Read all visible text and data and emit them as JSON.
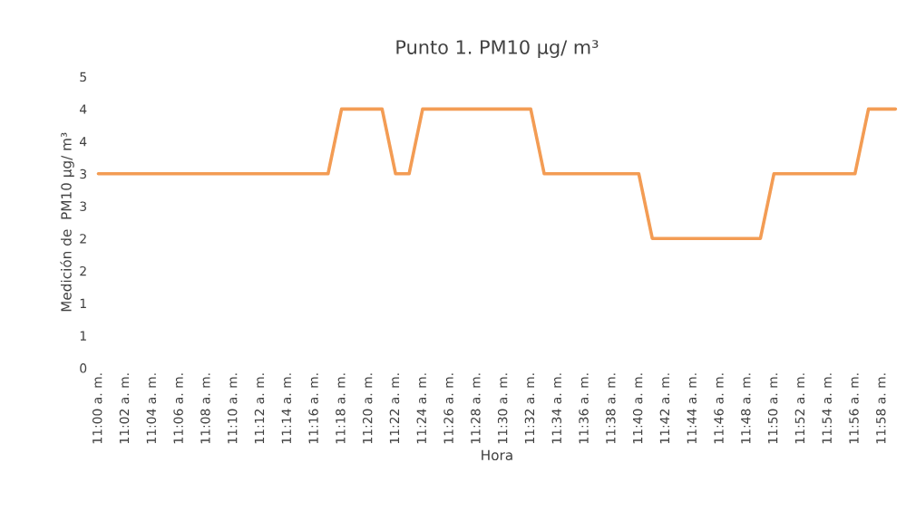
{
  "chart_data": {
    "type": "line",
    "title": "Punto 1. PM10 µg/ m³",
    "xlabel": "Hora",
    "ylabel": "Medición de  PM10 µg/ m³",
    "categories": [
      "11:00 a. m.",
      null,
      "11:02 a. m.",
      null,
      "11:04 a. m.",
      null,
      "11:06 a. m.",
      null,
      "11:08 a. m.",
      null,
      "11:10 a. m.",
      null,
      "11:12 a. m.",
      null,
      "11:14 a. m.",
      null,
      "11:16 a. m.",
      null,
      "11:18 a. m.",
      null,
      "11:20 a. m.",
      null,
      "11:22 a. m.",
      null,
      "11:24 a. m.",
      null,
      "11:26 a. m.",
      null,
      "11:28 a. m.",
      null,
      "11:30 a. m.",
      null,
      "11:32 a. m.",
      null,
      "11:34 a. m.",
      null,
      "11:36 a. m.",
      null,
      "11:38 a. m.",
      null,
      "11:40 a. m.",
      null,
      "11:42 a. m.",
      null,
      "11:44 a. m.",
      null,
      "11:46 a. m.",
      null,
      "11:48 a. m.",
      null,
      "11:50 a. m.",
      null,
      "11:52 a. m.",
      null,
      "11:54 a. m.",
      null,
      "11:56 a. m.",
      null,
      "11:58 a. m.",
      null
    ],
    "series": [
      {
        "color": "#f39c54",
        "values": [
          3,
          3,
          3,
          3,
          3,
          3,
          3,
          3,
          3,
          3,
          3,
          3,
          3,
          3,
          3,
          3,
          3,
          3,
          4,
          4,
          4,
          4,
          3,
          3,
          4,
          4,
          4,
          4,
          4,
          4,
          4,
          4,
          4,
          3,
          3,
          3,
          3,
          3,
          3,
          3,
          3,
          2,
          2,
          2,
          2,
          2,
          2,
          2,
          2,
          2,
          3,
          3,
          3,
          3,
          3,
          3,
          3,
          4,
          4,
          4
        ]
      }
    ],
    "ylim": [
      0,
      4.5
    ],
    "yticks": [
      0,
      {
        "value": 0.5,
        "label": "1"
      },
      1,
      {
        "value": 1.5,
        "label": "2"
      },
      2,
      {
        "value": 2.5,
        "label": "3"
      },
      3,
      {
        "value": 3.5,
        "label": "4"
      },
      4,
      {
        "value": 4.5,
        "label": "5"
      }
    ],
    "grid": false,
    "marker": "none",
    "line_style": "solid"
  }
}
